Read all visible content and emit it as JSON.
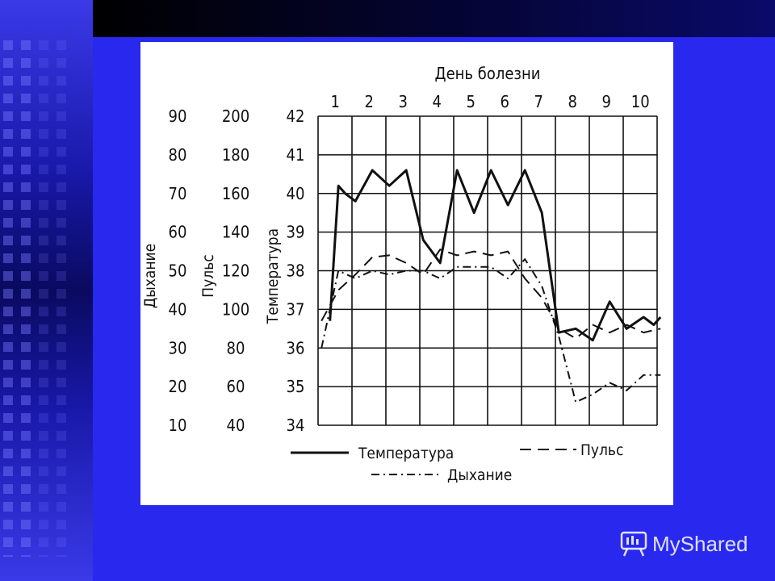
{
  "watermark": {
    "text": "MyShared",
    "icon": "presentation-board-icon"
  },
  "colors": {
    "background": "#2a2af0",
    "card": "#ffffff",
    "ink": "#111111"
  },
  "chart_data": {
    "type": "line",
    "title": "День болезни",
    "x": [
      1,
      2,
      3,
      4,
      5,
      6,
      7,
      8,
      9,
      10
    ],
    "x_tick_labels": [
      "1",
      "2",
      "3",
      "4",
      "5",
      "6",
      "7",
      "8",
      "9",
      "10"
    ],
    "xlim": [
      0.4,
      10.4
    ],
    "grid": true,
    "legend_placement": "bottom",
    "axes": [
      {
        "id": "breath",
        "label": "Дыхание",
        "ticks": [
          "90",
          "80",
          "70",
          "60",
          "50",
          "40",
          "30",
          "20",
          "10"
        ],
        "range": [
          10,
          90
        ]
      },
      {
        "id": "pulse",
        "label": "Пульс",
        "ticks": [
          "200",
          "180",
          "160",
          "140",
          "120",
          "100",
          "80",
          "60",
          "40"
        ],
        "range": [
          40,
          200
        ]
      },
      {
        "id": "temp",
        "label": "Температура",
        "ticks": [
          "42",
          "41",
          "40",
          "39",
          "38",
          "37",
          "36",
          "35",
          "34"
        ],
        "range": [
          34,
          42
        ]
      }
    ],
    "series": [
      {
        "name": "Температура",
        "style": "solid",
        "points": [
          [
            0.75,
            36.7
          ],
          [
            1.0,
            40.2
          ],
          [
            1.2,
            40.0
          ],
          [
            1.5,
            39.8
          ],
          [
            2.0,
            40.6
          ],
          [
            2.5,
            40.2
          ],
          [
            3.0,
            40.6
          ],
          [
            3.5,
            38.8
          ],
          [
            4.0,
            38.2
          ],
          [
            4.5,
            40.6
          ],
          [
            5.0,
            39.5
          ],
          [
            5.5,
            40.6
          ],
          [
            6.0,
            39.7
          ],
          [
            6.5,
            40.6
          ],
          [
            7.0,
            39.5
          ],
          [
            7.5,
            36.4
          ],
          [
            8.0,
            36.5
          ],
          [
            8.5,
            36.2
          ],
          [
            9.0,
            37.2
          ],
          [
            9.5,
            36.5
          ],
          [
            10.0,
            36.8
          ],
          [
            10.3,
            36.6
          ],
          [
            10.5,
            36.8
          ]
        ]
      },
      {
        "name": "Пульс",
        "style": "dashed",
        "points": [
          [
            0.5,
            94
          ],
          [
            1.0,
            110
          ],
          [
            1.5,
            118
          ],
          [
            2.0,
            127
          ],
          [
            2.5,
            128
          ],
          [
            3.0,
            124
          ],
          [
            3.5,
            118
          ],
          [
            4.0,
            131
          ],
          [
            4.5,
            128
          ],
          [
            5.0,
            130
          ],
          [
            5.5,
            128
          ],
          [
            6.0,
            130
          ],
          [
            6.5,
            116
          ],
          [
            7.0,
            106
          ],
          [
            7.5,
            90
          ],
          [
            8.0,
            85
          ],
          [
            8.5,
            92
          ],
          [
            9.0,
            88
          ],
          [
            9.5,
            92
          ],
          [
            10.0,
            88
          ],
          [
            10.5,
            90
          ]
        ]
      },
      {
        "name": "Дыхание",
        "style": "dashdot",
        "points": [
          [
            0.5,
            30
          ],
          [
            1.0,
            50
          ],
          [
            1.5,
            48
          ],
          [
            2.0,
            50
          ],
          [
            2.5,
            49
          ],
          [
            3.0,
            50
          ],
          [
            3.5,
            50
          ],
          [
            4.0,
            48
          ],
          [
            4.5,
            51
          ],
          [
            5.0,
            51
          ],
          [
            5.5,
            51
          ],
          [
            6.0,
            48
          ],
          [
            6.5,
            53
          ],
          [
            7.0,
            46
          ],
          [
            7.5,
            33
          ],
          [
            8.0,
            16
          ],
          [
            8.5,
            18
          ],
          [
            9.0,
            21
          ],
          [
            9.5,
            19
          ],
          [
            10.0,
            23
          ],
          [
            10.5,
            23
          ]
        ]
      }
    ]
  }
}
